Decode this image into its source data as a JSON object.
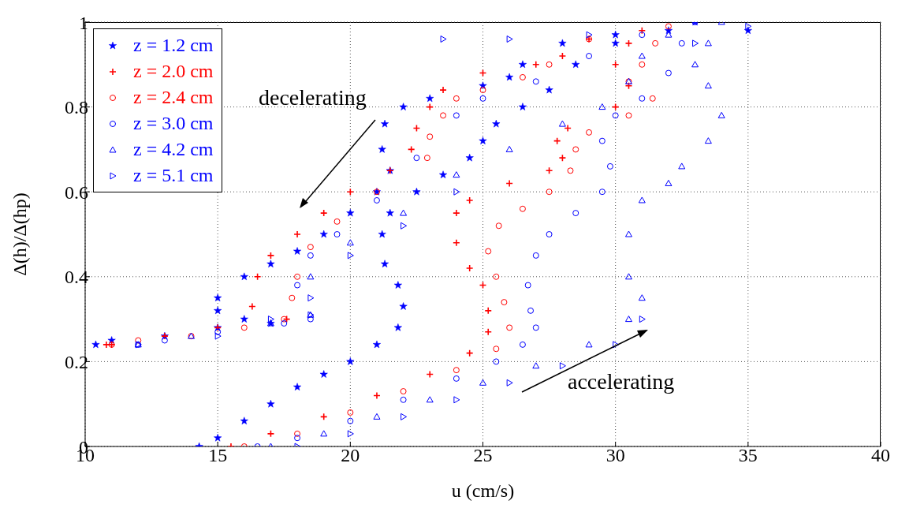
{
  "chart_data": {
    "type": "scatter",
    "xlabel": "u (cm/s)",
    "ylabel": "Δ(h)/Δ(hp)",
    "xlim": [
      10,
      40
    ],
    "xticks": [
      10,
      15,
      20,
      25,
      30,
      35,
      40
    ],
    "ylim": [
      0,
      1
    ],
    "yticks": [
      0,
      0.2,
      0.4,
      0.6,
      0.8,
      1
    ],
    "grid": true,
    "legend": "top left",
    "annotations": [
      "decelerating",
      "accelerating"
    ],
    "series": [
      {
        "name": "z = 1.2 cm",
        "color": "#0000ff",
        "marker": "star",
        "x": [
          14.3,
          15,
          16,
          17,
          18,
          19,
          20,
          21,
          21.8,
          22,
          21.8,
          21.3,
          21.2,
          21.5,
          22.5,
          23.5,
          24.5,
          25,
          25.5,
          26.5,
          27.5,
          28.5,
          30,
          32,
          35,
          33,
          30,
          28,
          26.5,
          26,
          25,
          23,
          22,
          21.3,
          21.2,
          21.5,
          21,
          20,
          19,
          18,
          17,
          16,
          15,
          15,
          16,
          17,
          15,
          13,
          11,
          10.4
        ],
        "values": [
          0,
          0.02,
          0.06,
          0.1,
          0.14,
          0.17,
          0.2,
          0.24,
          0.28,
          0.33,
          0.38,
          0.43,
          0.5,
          0.55,
          0.6,
          0.64,
          0.68,
          0.72,
          0.76,
          0.8,
          0.84,
          0.9,
          0.95,
          0.98,
          0.98,
          1,
          0.97,
          0.95,
          0.9,
          0.87,
          0.85,
          0.82,
          0.8,
          0.76,
          0.7,
          0.65,
          0.6,
          0.55,
          0.5,
          0.46,
          0.43,
          0.4,
          0.35,
          0.32,
          0.3,
          0.29,
          0.28,
          0.26,
          0.25,
          0.24
        ]
      },
      {
        "name": "z = 2.0 cm",
        "color": "#ff0000",
        "marker": "cross",
        "x": [
          15.5,
          17,
          19,
          21,
          23,
          24.5,
          25.2,
          25.2,
          25,
          24.5,
          24,
          24,
          24.5,
          26,
          27.5,
          28,
          27.8,
          28.2,
          30,
          30.5,
          30,
          30.5,
          31,
          29,
          28,
          27,
          25,
          23.5,
          23,
          22.5,
          22.3,
          21.5,
          20,
          19,
          18,
          17,
          16.5,
          16.3,
          17.6,
          15,
          13,
          11,
          10.8
        ],
        "values": [
          0,
          0.03,
          0.07,
          0.12,
          0.17,
          0.22,
          0.27,
          0.32,
          0.38,
          0.42,
          0.48,
          0.55,
          0.58,
          0.62,
          0.65,
          0.68,
          0.72,
          0.75,
          0.8,
          0.85,
          0.9,
          0.95,
          0.98,
          0.96,
          0.92,
          0.9,
          0.88,
          0.84,
          0.8,
          0.75,
          0.7,
          0.65,
          0.6,
          0.55,
          0.5,
          0.45,
          0.4,
          0.33,
          0.3,
          0.28,
          0.26,
          0.24,
          0.24
        ]
      },
      {
        "name": "z = 2.4 cm",
        "color": "#ff0000",
        "marker": "circle",
        "x": [
          16,
          18,
          20,
          22,
          24,
          25.5,
          26,
          25.8,
          25.5,
          25.2,
          25.6,
          26.5,
          27.5,
          28.3,
          28.5,
          29,
          30.5,
          31.4,
          30.5,
          31,
          31.5,
          32,
          29,
          27.5,
          26.5,
          25,
          24,
          23.5,
          23,
          22.9,
          21,
          19.5,
          18.5,
          18,
          17.8,
          17.5,
          16,
          14,
          12,
          11
        ],
        "values": [
          0,
          0.03,
          0.08,
          0.13,
          0.18,
          0.23,
          0.28,
          0.34,
          0.4,
          0.46,
          0.52,
          0.56,
          0.6,
          0.65,
          0.7,
          0.74,
          0.78,
          0.82,
          0.86,
          0.9,
          0.95,
          0.99,
          0.96,
          0.9,
          0.87,
          0.84,
          0.82,
          0.78,
          0.73,
          0.68,
          0.6,
          0.53,
          0.47,
          0.4,
          0.35,
          0.3,
          0.28,
          0.26,
          0.25,
          0.24
        ]
      },
      {
        "name": "z = 3.0 cm",
        "color": "#0000ff",
        "marker": "circle",
        "x": [
          16.5,
          18,
          20,
          22,
          24,
          25.5,
          26.5,
          27,
          26.8,
          26.7,
          27,
          27.5,
          28.5,
          29.5,
          29.8,
          29.5,
          30,
          31,
          32,
          32.5,
          33,
          31,
          29,
          27,
          25,
          24,
          22.5,
          21,
          19.5,
          18.5,
          18,
          18.5,
          17.5,
          15,
          13,
          12
        ],
        "values": [
          0,
          0.02,
          0.06,
          0.11,
          0.16,
          0.2,
          0.24,
          0.28,
          0.32,
          0.38,
          0.45,
          0.5,
          0.55,
          0.6,
          0.66,
          0.72,
          0.78,
          0.82,
          0.88,
          0.95,
          1,
          0.97,
          0.92,
          0.86,
          0.82,
          0.78,
          0.68,
          0.58,
          0.5,
          0.45,
          0.38,
          0.3,
          0.29,
          0.27,
          0.25,
          0.24
        ]
      },
      {
        "name": "z = 4.2 cm",
        "color": "#0000ff",
        "marker": "triangle",
        "x": [
          17,
          19,
          21,
          23,
          25,
          27,
          29,
          30.5,
          31,
          30.5,
          30.5,
          31,
          32,
          32.5,
          33.5,
          34,
          33.5,
          33,
          33.5,
          34,
          32,
          31,
          30.5,
          29.5,
          28,
          26,
          24,
          22,
          20,
          18.5,
          18.5,
          17,
          14,
          12
        ],
        "values": [
          0,
          0.03,
          0.07,
          0.11,
          0.15,
          0.19,
          0.24,
          0.3,
          0.35,
          0.4,
          0.5,
          0.58,
          0.62,
          0.66,
          0.72,
          0.78,
          0.85,
          0.9,
          0.95,
          1,
          0.97,
          0.92,
          0.86,
          0.8,
          0.76,
          0.7,
          0.64,
          0.55,
          0.48,
          0.4,
          0.31,
          0.29,
          0.26,
          0.24
        ]
      },
      {
        "name": "z = 5.1 cm",
        "color": "#0000ff",
        "marker": "triangle-right",
        "x": [
          18,
          20,
          22,
          24,
          26,
          28,
          30,
          31,
          33,
          35,
          29,
          26,
          23.5,
          24,
          22,
          20,
          18.5,
          17,
          18.5,
          15,
          12
        ],
        "values": [
          0,
          0.03,
          0.07,
          0.11,
          0.15,
          0.19,
          0.24,
          0.3,
          0.95,
          0.99,
          0.97,
          0.96,
          0.96,
          0.6,
          0.52,
          0.45,
          0.35,
          0.3,
          0.31,
          0.26,
          0.24
        ]
      }
    ]
  }
}
